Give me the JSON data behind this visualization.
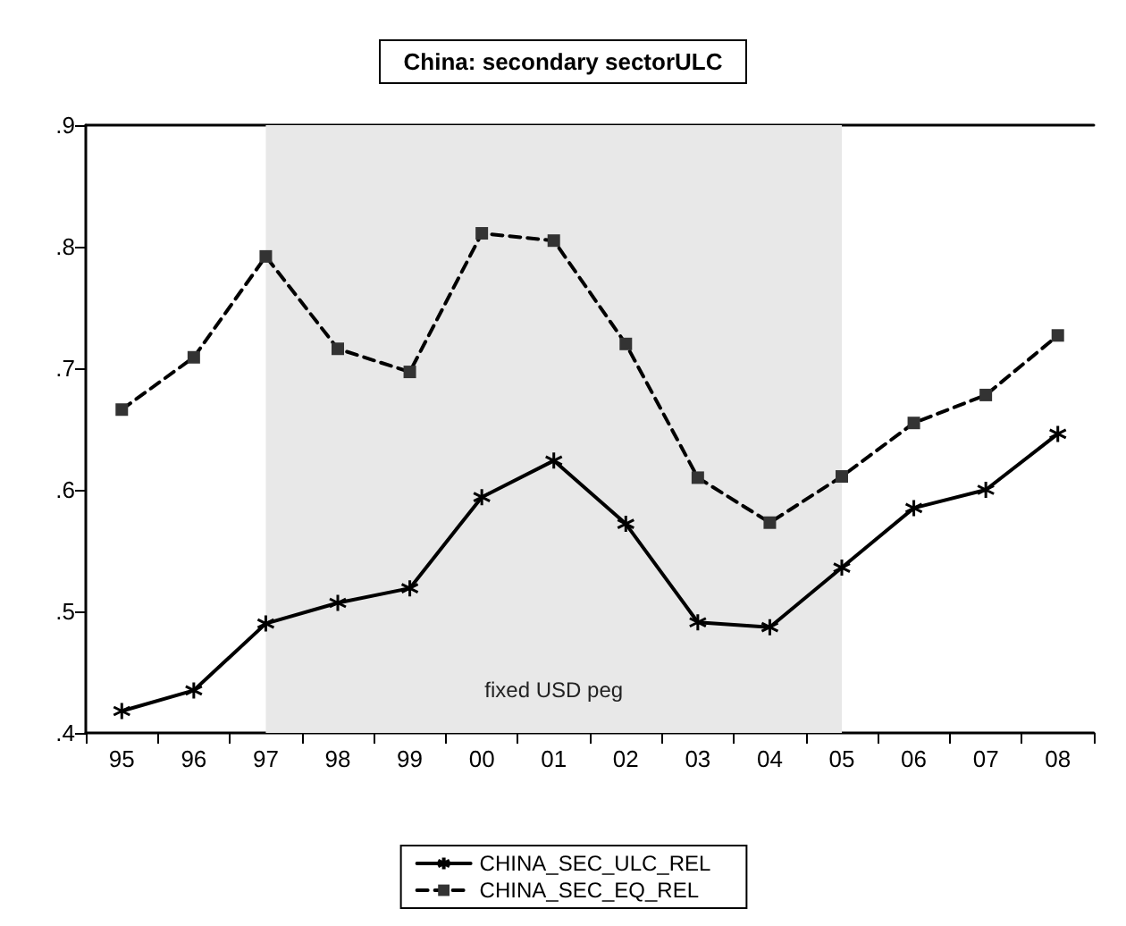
{
  "chart_data": {
    "type": "line",
    "title": "China: secondary sectorULC",
    "categories": [
      "95",
      "96",
      "97",
      "98",
      "99",
      "00",
      "01",
      "02",
      "03",
      "04",
      "05",
      "06",
      "07",
      "08"
    ],
    "series": [
      {
        "name": "CHINA_SEC_ULC_REL",
        "color": "#000000",
        "marker": "cross",
        "line_style": "solid",
        "values": [
          0.418,
          0.435,
          0.49,
          0.507,
          0.519,
          0.594,
          0.624,
          0.572,
          0.491,
          0.487,
          0.536,
          0.585,
          0.6,
          0.646
        ]
      },
      {
        "name": "CHINA_SEC_EQ_REL",
        "color": "#000000",
        "marker": "square",
        "line_style": "dashed",
        "values": [
          0.666,
          0.709,
          0.792,
          0.716,
          0.697,
          0.811,
          0.805,
          0.72,
          0.61,
          0.573,
          0.611,
          0.655,
          0.678,
          0.727
        ]
      }
    ],
    "ylim": [
      0.4,
      0.9
    ],
    "yticks": [
      {
        "value": 0.4,
        "label": ".4"
      },
      {
        "value": 0.5,
        "label": ".5"
      },
      {
        "value": 0.6,
        "label": ".6"
      },
      {
        "value": 0.7,
        "label": ".7"
      },
      {
        "value": 0.8,
        "label": ".8"
      },
      {
        "value": 0.9,
        "label": ".9"
      }
    ],
    "bands": [
      {
        "axis": "x",
        "from": "97",
        "to": "05",
        "label": "fixed USD peg",
        "color": "#e8e8e8"
      }
    ],
    "grid": false,
    "legend": "bottom"
  }
}
